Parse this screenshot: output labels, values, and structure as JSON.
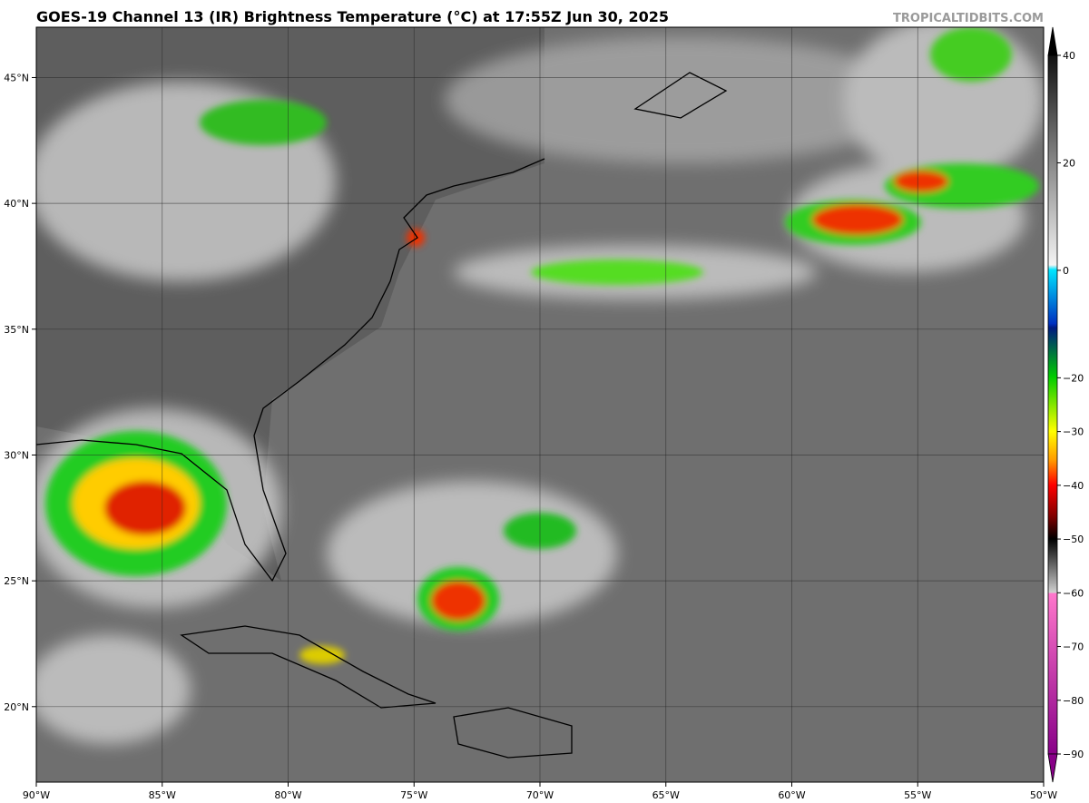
{
  "chart_data": {
    "type": "map",
    "title": "GOES-19 Channel 13 (IR) Brightness Temperature (°C) at 17:55Z Jun 30, 2025",
    "credit": "TROPICALTIDBITS.COM",
    "xlim": [
      -90,
      -50
    ],
    "ylim": [
      17,
      47
    ],
    "xticks": [
      {
        "value": -90,
        "label": "90°W"
      },
      {
        "value": -85,
        "label": "85°W"
      },
      {
        "value": -80,
        "label": "80°W"
      },
      {
        "value": -75,
        "label": "75°W"
      },
      {
        "value": -70,
        "label": "70°W"
      },
      {
        "value": -65,
        "label": "65°W"
      },
      {
        "value": -60,
        "label": "60°W"
      },
      {
        "value": -55,
        "label": "55°W"
      },
      {
        "value": -50,
        "label": "50°W"
      }
    ],
    "yticks": [
      {
        "value": 20,
        "label": "20°N"
      },
      {
        "value": 25,
        "label": "25°N"
      },
      {
        "value": 30,
        "label": "30°N"
      },
      {
        "value": 35,
        "label": "35°N"
      },
      {
        "value": 40,
        "label": "40°N"
      },
      {
        "value": 45,
        "label": "45°N"
      }
    ],
    "grid": true,
    "colorbar": {
      "clim": [
        -90,
        40
      ],
      "ticks": [
        40,
        20,
        0,
        {
          "value": -20,
          "label": "−20"
        },
        {
          "value": -30,
          "label": "−30"
        },
        {
          "value": -40,
          "label": "−40"
        },
        {
          "value": -50,
          "label": "−50"
        },
        {
          "value": -60,
          "label": "−60"
        },
        {
          "value": -70,
          "label": "−70"
        },
        {
          "value": -80,
          "label": "−80"
        },
        {
          "value": -90,
          "label": "−90"
        }
      ]
    }
  }
}
